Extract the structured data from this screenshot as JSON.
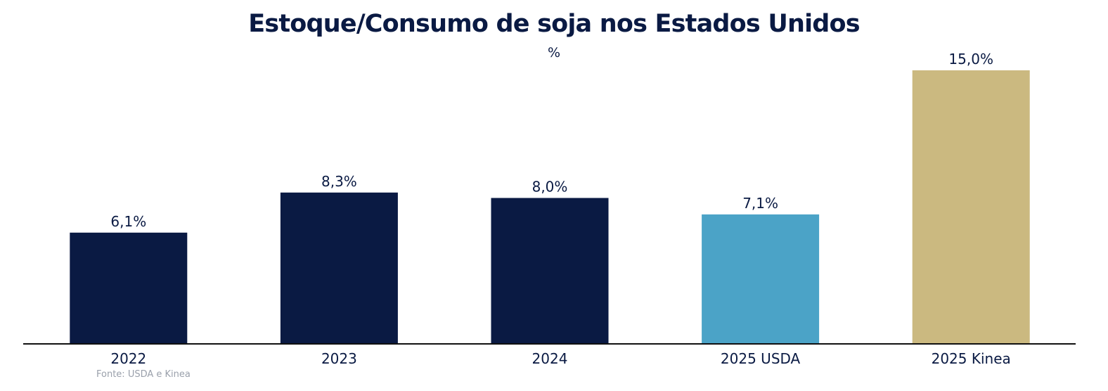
{
  "chart_data": {
    "type": "bar",
    "title": "Estoque/Consumo de soja nos Estados Unidos",
    "subtitle": "%",
    "categories": [
      "2022",
      "2023",
      "2024",
      "2025 USDA",
      "2025 Kinea"
    ],
    "values": [
      6.1,
      8.3,
      8.0,
      7.1,
      15.0
    ],
    "data_labels": [
      "6,1%",
      "8,3%",
      "8,0%",
      "7,1%",
      "15,0%"
    ],
    "bar_colors": [
      "#0a1a43",
      "#0a1a43",
      "#0a1a43",
      "#4ba3c7",
      "#cbb980"
    ],
    "axis_color": "#111111",
    "text_color": "#0a1a43",
    "ylim": [
      0,
      15.0
    ],
    "grid": false,
    "legend": "none",
    "source": "Fonte: USDA e Kinea"
  }
}
